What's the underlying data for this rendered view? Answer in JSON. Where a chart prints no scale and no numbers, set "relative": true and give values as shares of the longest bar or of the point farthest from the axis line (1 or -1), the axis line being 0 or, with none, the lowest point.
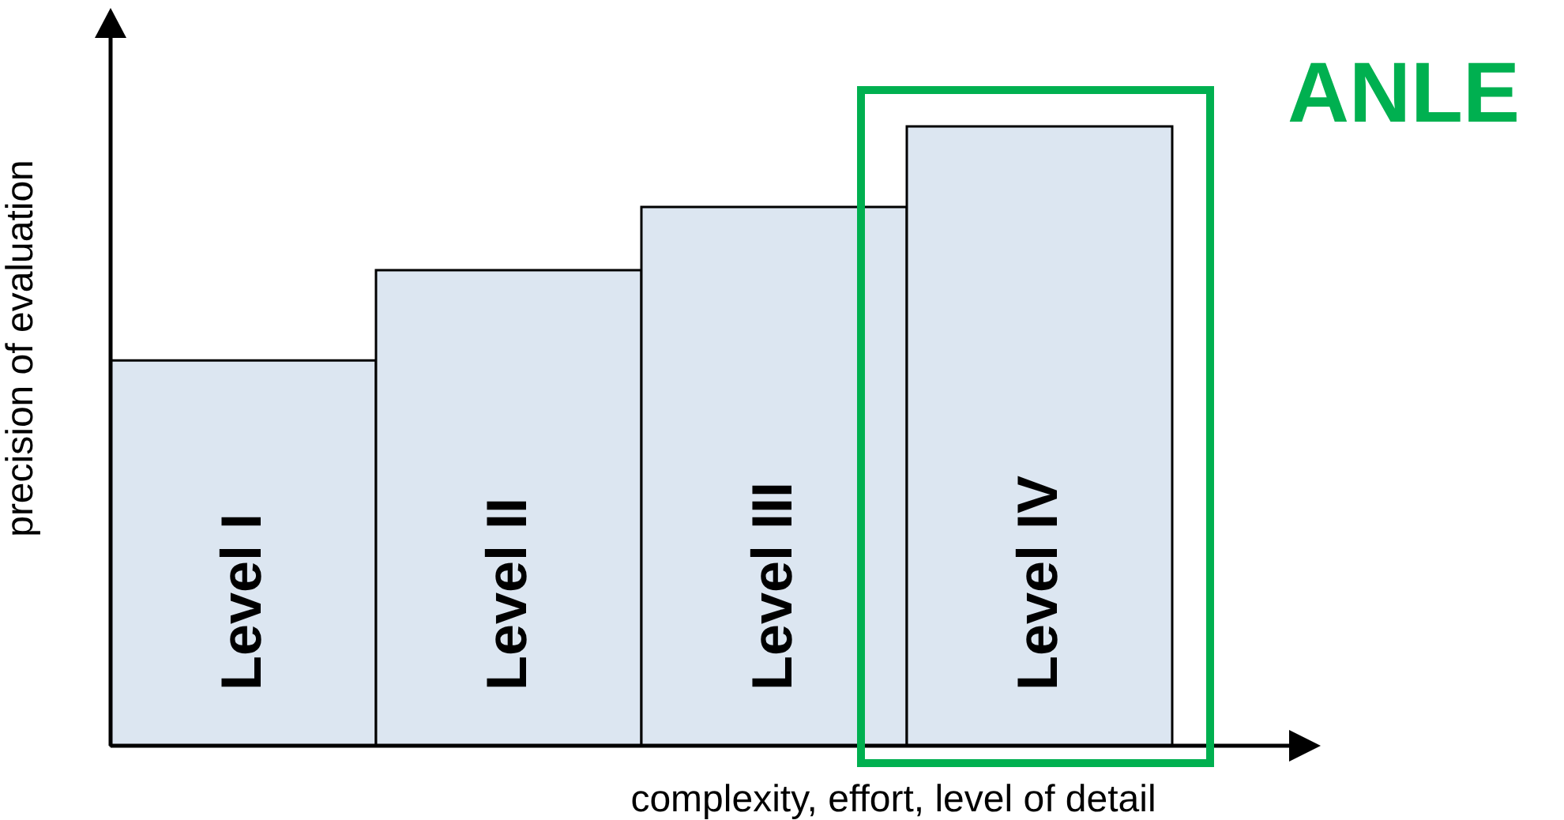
{
  "chart_data": {
    "type": "bar",
    "relative": true,
    "xlabel": "complexity, effort, level of detail",
    "ylabel": "precision of evaluation",
    "categories": [
      "Level I",
      "Level II",
      "Level III",
      "Level IV"
    ],
    "values": [
      0.622,
      0.768,
      0.87,
      1
    ],
    "color": "#dce6f1",
    "annotations": [
      "ANLE"
    ],
    "grid": false
  }
}
